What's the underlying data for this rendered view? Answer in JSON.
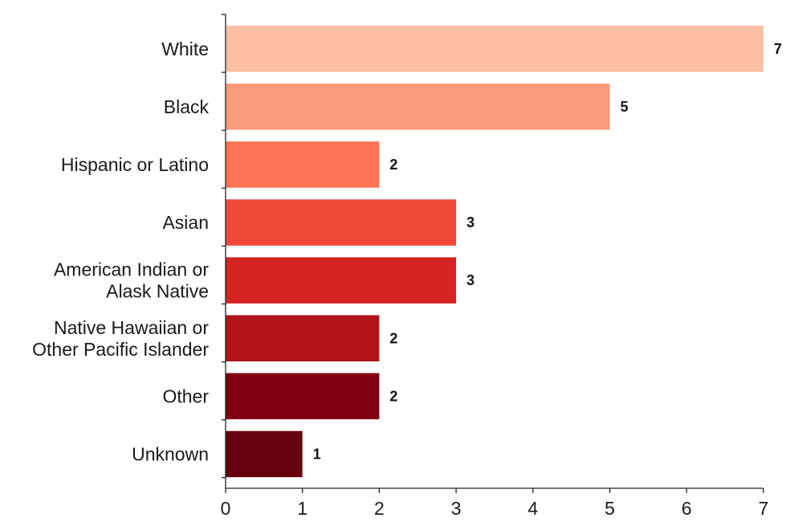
{
  "chart_data": {
    "type": "bar",
    "orientation": "horizontal",
    "title": "",
    "xlabel": "",
    "ylabel": "",
    "categories": [
      [
        "White"
      ],
      [
        "Black"
      ],
      [
        "Hispanic or Latino"
      ],
      [
        "Asian"
      ],
      [
        "American Indian or",
        "Alask Native"
      ],
      [
        "Native Hawaiian or",
        "Other Pacific Islander"
      ],
      [
        "Other"
      ],
      [
        "Unknown"
      ]
    ],
    "values": [
      7,
      5,
      2,
      3,
      3,
      2,
      2,
      1
    ],
    "data_labels": [
      "7",
      "5",
      "2",
      "3",
      "3",
      "2",
      "2",
      "1"
    ],
    "xlim": [
      0,
      7
    ],
    "xticks": [
      0,
      1,
      2,
      3,
      4,
      5,
      6,
      7
    ],
    "xtick_labels": [
      "0",
      "1",
      "2",
      "3",
      "4",
      "5",
      "6",
      "7"
    ],
    "colors": [
      "#fcbfa6",
      "#fc9a7c",
      "#fb7354",
      "#f0493a",
      "#d52421",
      "#b01318",
      "#7f0111",
      "#67000d"
    ],
    "grid": false,
    "legend": "none"
  }
}
